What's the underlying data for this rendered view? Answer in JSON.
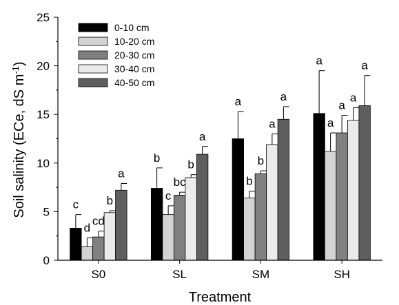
{
  "chart_data": {
    "type": "bar",
    "title": "",
    "xlabel": "Treatment",
    "ylabel_prefix": "Soil salinity (ECe, dS m",
    "ylabel_sup": "-1",
    "ylabel_suffix": ")",
    "ylim": [
      0,
      25
    ],
    "yticks": [
      "0",
      "5",
      "10",
      "15",
      "20",
      "25"
    ],
    "grid": false,
    "legend_position": "top-left",
    "categories": [
      "S0",
      "SL",
      "SM",
      "SH"
    ],
    "series": [
      {
        "name": "0-10 cm",
        "color": "#000000",
        "values": [
          3.3,
          7.4,
          12.5,
          15.1
        ],
        "errors": [
          1.4,
          2.1,
          2.8,
          4.4
        ],
        "labels": [
          "c",
          "b",
          "a",
          "a"
        ]
      },
      {
        "name": "10-20 cm",
        "color": "#d3d3d3",
        "values": [
          1.4,
          4.7,
          6.4,
          11.2
        ],
        "errors": [
          0.9,
          0.9,
          0.7,
          1.9
        ],
        "labels": [
          "d",
          "c",
          "b",
          "a"
        ]
      },
      {
        "name": "20-30 cm",
        "color": "#808080",
        "values": [
          2.4,
          6.7,
          8.9,
          13.1
        ],
        "errors": [
          0.6,
          0.3,
          0.3,
          1.8
        ],
        "labels": [
          "cd",
          "bc",
          "b",
          "a"
        ]
      },
      {
        "name": "30-40 cm",
        "color": "#ebebeb",
        "values": [
          4.9,
          8.5,
          11.9,
          14.4
        ],
        "errors": [
          0.2,
          0.3,
          1.1,
          1.3
        ],
        "labels": [
          "b",
          "b",
          "a",
          "a"
        ]
      },
      {
        "name": "40-50 cm",
        "color": "#5f5f5f",
        "values": [
          7.2,
          10.9,
          14.5,
          15.9
        ],
        "errors": [
          0.7,
          0.8,
          1.3,
          3.1
        ],
        "labels": [
          "a",
          "a",
          "a",
          "a"
        ]
      }
    ]
  }
}
